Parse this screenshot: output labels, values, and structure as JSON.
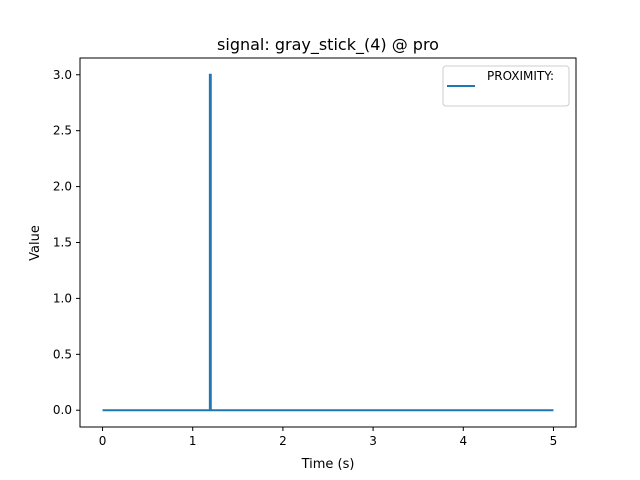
{
  "chart_data": {
    "type": "line",
    "title": "signal: gray_stick_(4) @ pro",
    "xlabel": "Time (s)",
    "ylabel": "Value",
    "xlim": [
      -0.25,
      5.25
    ],
    "ylim": [
      -0.15,
      3.15
    ],
    "xticks": [
      0,
      1,
      2,
      3,
      4,
      5
    ],
    "xtick_labels": [
      "0",
      "1",
      "2",
      "3",
      "4",
      "5"
    ],
    "yticks": [
      0.0,
      0.5,
      1.0,
      1.5,
      2.0,
      2.5,
      3.0
    ],
    "ytick_labels": [
      "0.0",
      "0.5",
      "1.0",
      "1.5",
      "2.0",
      "2.5",
      "3.0"
    ],
    "grid": false,
    "legend_position": "top-right",
    "series": [
      {
        "name": "PROXIMITY:",
        "color": "#1f77b4",
        "x": [
          0,
          1.19,
          1.19,
          1.2,
          1.2,
          5
        ],
        "y": [
          0,
          0,
          3.0,
          3.0,
          0,
          0
        ]
      }
    ]
  }
}
